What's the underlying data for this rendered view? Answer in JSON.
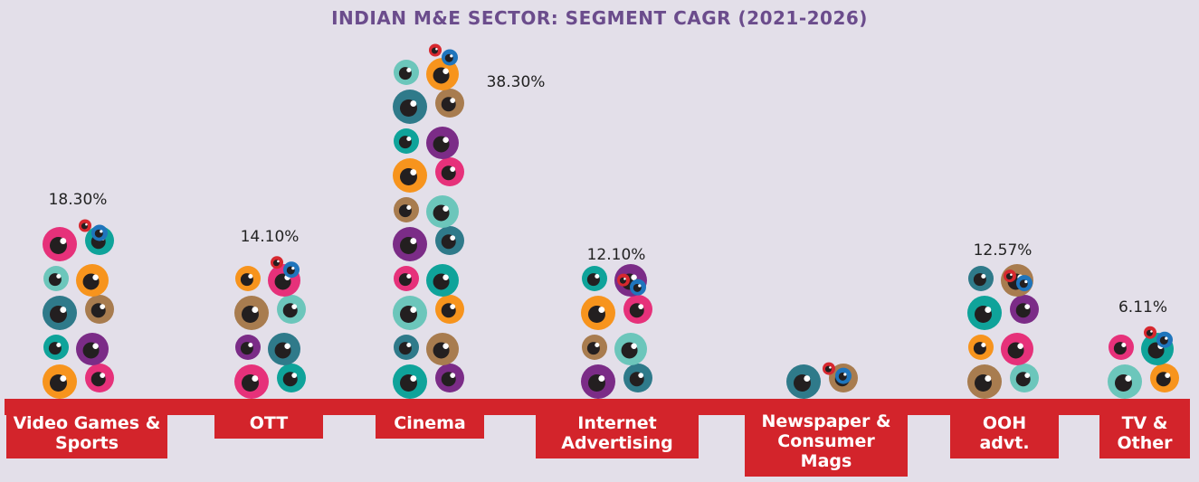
{
  "chart_data": {
    "type": "bar",
    "title": "INDIAN M&E SECTOR: SEGMENT CAGR (2021-2026)",
    "categories": [
      "Video Games & Sports",
      "OTT",
      "Cinema",
      "Internet Advertising",
      "Newspaper & Consumer Mags",
      "OOH advt.",
      "TV & Other"
    ],
    "values": [
      18.3,
      14.1,
      38.3,
      12.1,
      2,
      12.57,
      6.11
    ],
    "value_labels": [
      "18.30%",
      "14.10%",
      "38.30%",
      "12.10%",
      null,
      "12.57%",
      "6.11%"
    ],
    "color": "#d3242b",
    "colors": [
      "#f7941d",
      "#e6317a",
      "#0fa39a",
      "#7b2c87",
      "#2f7a8a",
      "#a87c4f",
      "#6cc6bb"
    ]
  }
}
